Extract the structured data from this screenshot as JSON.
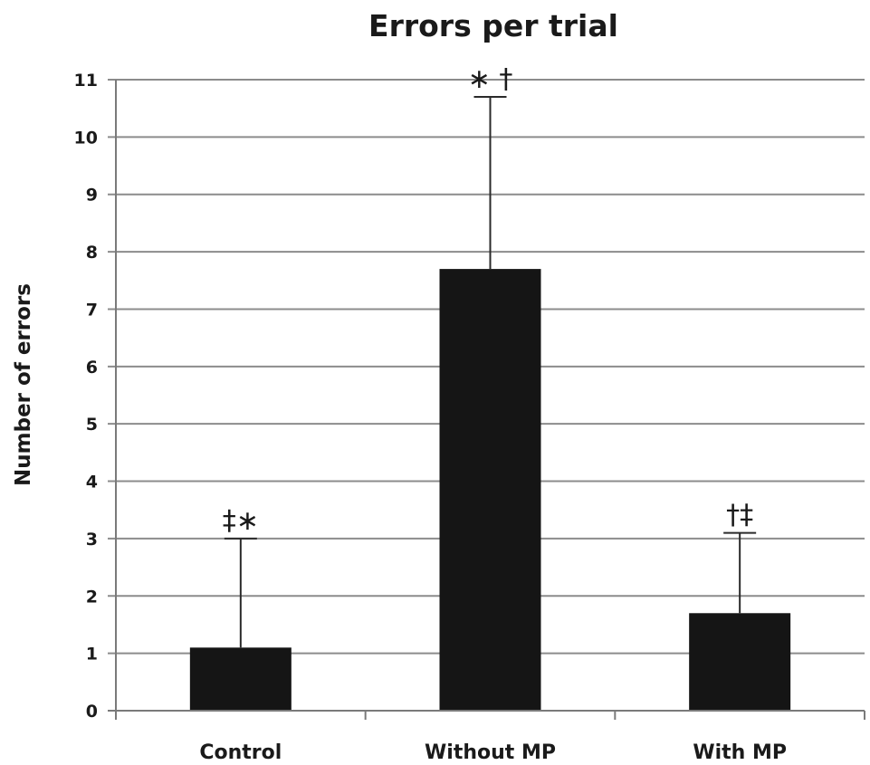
{
  "chart_data": {
    "type": "bar",
    "title": "Errors per trial",
    "ylabel": "Number of errors",
    "xlabel": "",
    "categories": [
      "Control",
      "Without MP",
      "With MP"
    ],
    "values": [
      1.1,
      7.7,
      1.7
    ],
    "error_upper": [
      3.0,
      10.7,
      3.1
    ],
    "annotations": [
      "‡∗",
      "∗ †",
      "†‡"
    ],
    "ylim": [
      0,
      11
    ],
    "yticks": [
      0,
      1,
      2,
      3,
      4,
      5,
      6,
      7,
      8,
      9,
      10,
      11
    ],
    "grid": true,
    "colors": {
      "bar": "#151515",
      "grid": "#8c8c8c"
    }
  }
}
